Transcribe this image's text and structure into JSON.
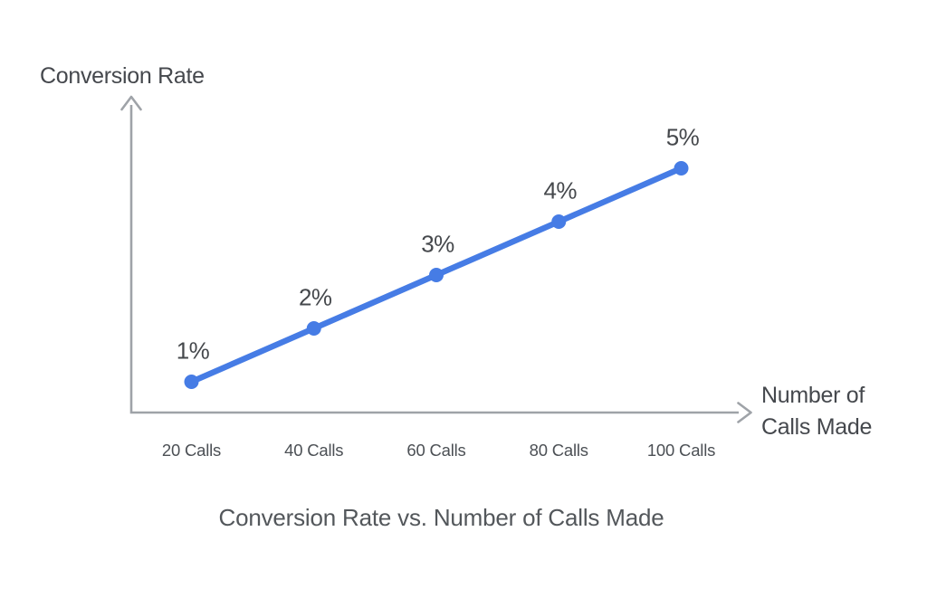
{
  "chart_data": {
    "type": "line",
    "title": "Conversion Rate vs. Number of Calls Made",
    "ylabel": "Conversion Rate",
    "xlabel": "Number of Calls Made",
    "xlabel_lines": [
      "Number of",
      "Calls Made"
    ],
    "categories": [
      "20 Calls",
      "40 Calls",
      "60 Calls",
      "80 Calls",
      "100 Calls"
    ],
    "x_values": [
      20,
      40,
      60,
      80,
      100
    ],
    "values": [
      1,
      2,
      3,
      4,
      5
    ],
    "unit": "%",
    "point_labels": [
      "1%",
      "2%",
      "3%",
      "4%",
      "5%"
    ],
    "ylim": [
      0,
      6
    ],
    "grid": false,
    "legend": "none",
    "axis_arrows": true,
    "colors": {
      "line": "#467ce5",
      "point": "#467ce5",
      "axis": "#9fa3a8",
      "title_text": "#53575b",
      "label_text": "#45484c",
      "tick_text": "#4c5055"
    }
  }
}
